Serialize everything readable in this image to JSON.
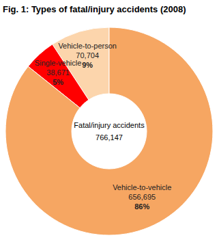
{
  "chart_data": {
    "type": "pie",
    "title": "Fig. 1: Types of fatal/injury accidents (2008)",
    "categories": [
      "Vehicle-to-person",
      "Single-vehicle",
      "Vehicle-to-vehicle"
    ],
    "values": [
      70704,
      38671,
      656695
    ],
    "value_labels": [
      "70,704",
      "38,671",
      "656,695"
    ],
    "percentages": [
      9,
      5,
      86
    ],
    "percentage_labels": [
      "9%",
      "5%",
      "86%"
    ],
    "colors": [
      "#fcd5ac",
      "#ff0000",
      "#f6a662"
    ],
    "center_label": "Fatal/injury accidents",
    "total": {
      "value": 766147,
      "label": "766,147"
    },
    "data_labels": true
  }
}
